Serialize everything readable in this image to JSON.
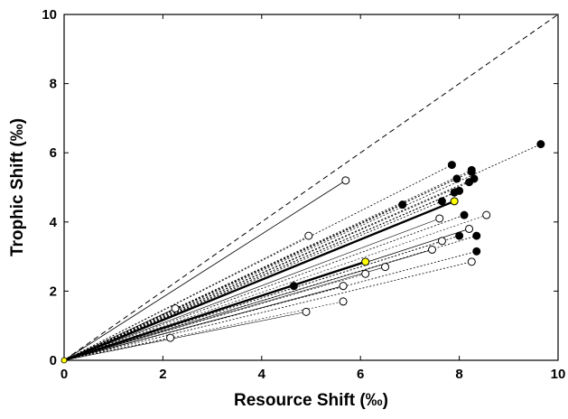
{
  "chart_data": {
    "type": "scatter",
    "xlabel": "Resource Shift (‰)",
    "ylabel": "Trophic Shift (‰)",
    "xlim": [
      0,
      10
    ],
    "ylim": [
      0,
      10
    ],
    "x_ticks": [
      "0",
      "2",
      "4",
      "6",
      "8",
      "10"
    ],
    "y_ticks": [
      "0",
      "2",
      "4",
      "6",
      "8",
      "10"
    ],
    "grid": false,
    "origin": [
      0,
      0
    ],
    "reference_line": {
      "style": "dashed",
      "slope": 1
    },
    "colors": {
      "filled": "#000000",
      "open": "#ffffff",
      "highlight": "#ffff00",
      "line": "#000000"
    },
    "series": [
      {
        "marker": "filled",
        "points": [
          [
            9.65,
            6.25
          ],
          [
            7.85,
            5.65
          ],
          [
            8.25,
            5.5
          ],
          [
            8.25,
            5.45
          ],
          [
            8.3,
            5.25
          ],
          [
            8.2,
            5.15
          ],
          [
            7.95,
            5.25
          ],
          [
            7.9,
            4.85
          ],
          [
            8.0,
            4.9
          ],
          [
            7.65,
            4.6
          ],
          [
            6.85,
            4.5
          ],
          [
            8.1,
            4.2
          ],
          [
            8.0,
            3.6
          ],
          [
            8.35,
            3.6
          ],
          [
            8.35,
            3.15
          ],
          [
            4.65,
            2.15
          ]
        ]
      },
      {
        "marker": "open",
        "points": [
          [
            5.7,
            5.2
          ],
          [
            4.95,
            3.6
          ],
          [
            2.25,
            1.5
          ],
          [
            2.15,
            0.65
          ],
          [
            7.6,
            4.1
          ],
          [
            8.55,
            4.2
          ],
          [
            8.2,
            3.8
          ],
          [
            7.65,
            3.45
          ],
          [
            7.45,
            3.2
          ],
          [
            8.25,
            2.85
          ],
          [
            6.5,
            2.7
          ],
          [
            6.1,
            2.5
          ],
          [
            5.65,
            2.15
          ],
          [
            5.65,
            1.7
          ],
          [
            4.9,
            1.4
          ]
        ]
      },
      {
        "marker": "highlight",
        "points": [
          [
            7.9,
            4.6
          ],
          [
            6.1,
            2.85
          ]
        ]
      }
    ]
  }
}
